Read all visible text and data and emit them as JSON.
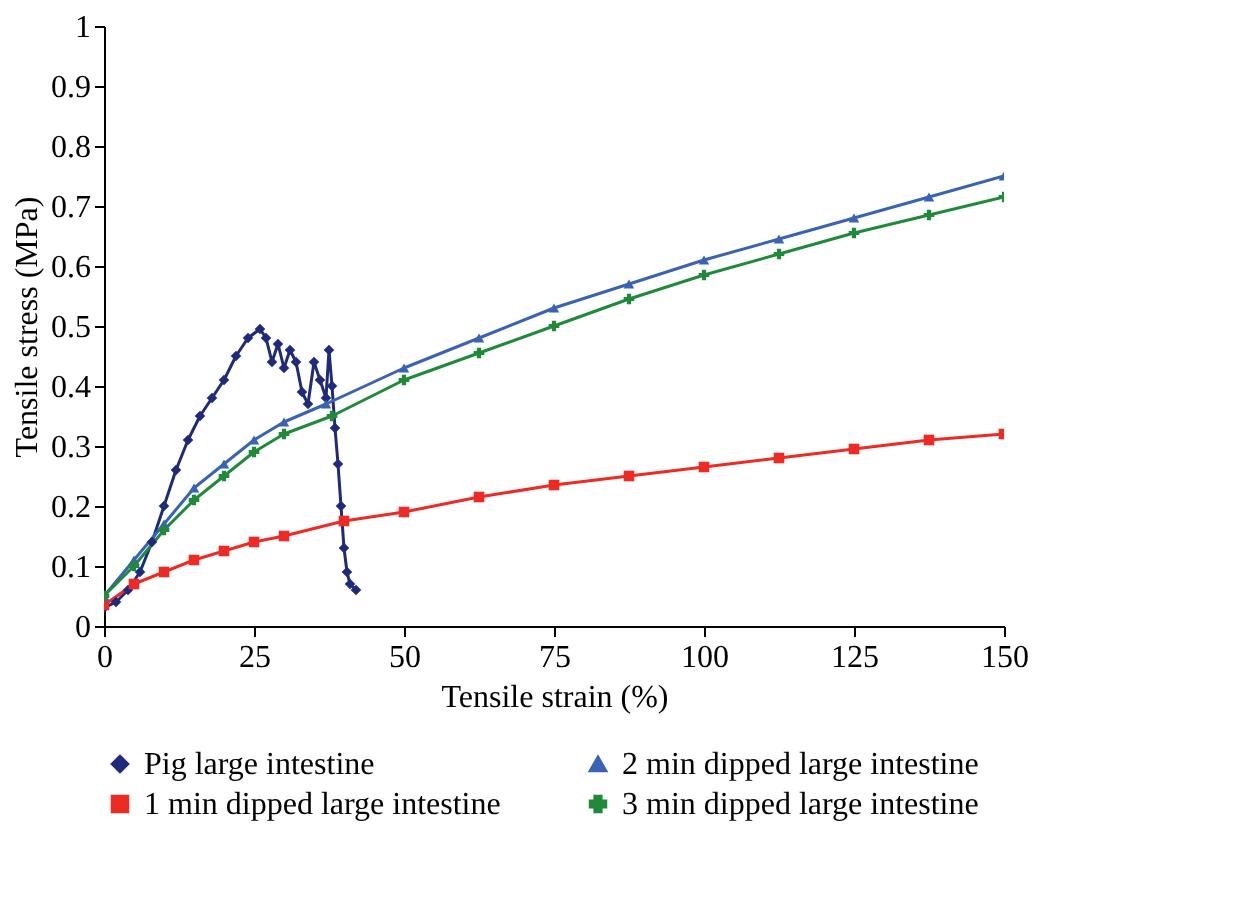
{
  "chart_data": {
    "type": "line",
    "xlabel": "Tensile strain (%)",
    "ylabel": "Tensile stress (MPa)",
    "xlim": [
      0,
      150
    ],
    "xticks": [
      0,
      25,
      50,
      75,
      100,
      125,
      150
    ],
    "ylim": [
      0,
      1
    ],
    "yticks": [
      0,
      0.1,
      0.2,
      0.3,
      0.4,
      0.5,
      0.6,
      0.7,
      0.8,
      0.9,
      1
    ],
    "grid": false,
    "legend": "bottom",
    "series": [
      {
        "name": "Pig large intestine",
        "color": "#1f2a7a",
        "marker": "diamond",
        "x": [
          0,
          2,
          4,
          6,
          8,
          10,
          12,
          14,
          16,
          18,
          20,
          22,
          24,
          26,
          27,
          28,
          29,
          30,
          31,
          32,
          33,
          34,
          35,
          36,
          37,
          37.5,
          38,
          38.5,
          39,
          39.5,
          40,
          40.5,
          41,
          42
        ],
        "values": [
          0.03,
          0.04,
          0.06,
          0.09,
          0.14,
          0.2,
          0.26,
          0.31,
          0.35,
          0.38,
          0.41,
          0.45,
          0.48,
          0.495,
          0.48,
          0.44,
          0.47,
          0.43,
          0.46,
          0.44,
          0.39,
          0.37,
          0.44,
          0.41,
          0.38,
          0.46,
          0.4,
          0.33,
          0.27,
          0.2,
          0.13,
          0.09,
          0.07,
          0.06
        ]
      },
      {
        "name": "1 min dipped large intestine",
        "color": "#ee2a24",
        "marker": "square",
        "x": [
          0,
          5,
          10,
          15,
          20,
          25,
          30,
          40,
          50,
          62.5,
          75,
          87.5,
          100,
          112.5,
          125,
          137.5,
          150
        ],
        "values": [
          0.035,
          0.07,
          0.09,
          0.11,
          0.125,
          0.14,
          0.15,
          0.175,
          0.19,
          0.215,
          0.235,
          0.25,
          0.265,
          0.28,
          0.295,
          0.31,
          0.32
        ]
      },
      {
        "name": "2 min dipped large intestine",
        "color": "#3a62b5",
        "marker": "triangle-up",
        "x": [
          0,
          5,
          10,
          15,
          20,
          25,
          30,
          37,
          50,
          62.5,
          75,
          87.5,
          100,
          112.5,
          125,
          137.5,
          150
        ],
        "values": [
          0.05,
          0.11,
          0.17,
          0.23,
          0.27,
          0.31,
          0.34,
          0.37,
          0.43,
          0.48,
          0.53,
          0.57,
          0.61,
          0.645,
          0.68,
          0.715,
          0.75
        ]
      },
      {
        "name": "3 min dipped large intestine",
        "color": "#1e8a3a",
        "marker": "cross",
        "x": [
          0,
          5,
          10,
          15,
          20,
          25,
          30,
          38,
          50,
          62.5,
          75,
          87.5,
          100,
          112.5,
          125,
          137.5,
          150
        ],
        "values": [
          0.05,
          0.1,
          0.16,
          0.21,
          0.25,
          0.29,
          0.32,
          0.35,
          0.41,
          0.455,
          0.5,
          0.545,
          0.585,
          0.62,
          0.655,
          0.685,
          0.715
        ]
      }
    ]
  }
}
